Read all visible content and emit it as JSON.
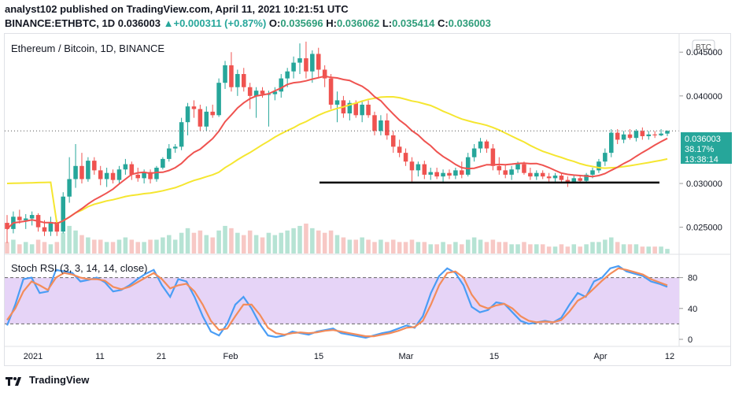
{
  "header": {
    "published_line": "analyst102 published on TradingView.com, April 11, 2021 10:21:51 UTC",
    "symbol": "BINANCE:ETHBTC, 1D",
    "last": "0.036003",
    "change": "▲+0.000311 (+0.87%)",
    "o_label": "O:",
    "o_value": "0.035696",
    "h_label": "H:",
    "h_value": "0.036062",
    "l_label": "L:",
    "l_value": "0.035414",
    "c_label": "C:",
    "c_value": "0.036003"
  },
  "pane_title": "Ethereum / Bitcoin, 1D, BINANCE",
  "currency_badge": "BTC",
  "price_label": {
    "price": "0.036003",
    "pct": "38.17%",
    "timer": "13:38:14"
  },
  "rsi_title": "Stoch RSI (3, 3, 14, 14, close)",
  "footer_brand": "TradingView",
  "colors": {
    "up": "#26a69a",
    "down": "#ef5350",
    "ma_fast": "#ef5350",
    "ma_slow": "#f5e630",
    "stoch_k": "#4a9df5",
    "stoch_d": "#f38c5a",
    "rsi_band": "#e6d4f7"
  },
  "chart_data": [
    {
      "type": "candlestick",
      "title": "Ethereum / Bitcoin, 1D, BINANCE",
      "x_ticks": [
        "2021",
        "11",
        "21",
        "Feb",
        "15",
        "Mar",
        "15",
        "Apr",
        "12"
      ],
      "y_ticks": [
        "0.045000",
        "0.040000",
        "0.030000",
        "0.025000"
      ],
      "ylim": [
        0.022,
        0.047
      ],
      "candles": [
        {
          "o": 0.0255,
          "h": 0.0264,
          "l": 0.0232,
          "c": 0.0248
        },
        {
          "o": 0.0248,
          "h": 0.0268,
          "l": 0.0243,
          "c": 0.0262
        },
        {
          "o": 0.0262,
          "h": 0.027,
          "l": 0.0254,
          "c": 0.0258
        },
        {
          "o": 0.0258,
          "h": 0.0265,
          "l": 0.0248,
          "c": 0.026
        },
        {
          "o": 0.026,
          "h": 0.0268,
          "l": 0.0252,
          "c": 0.0264
        },
        {
          "o": 0.0264,
          "h": 0.0266,
          "l": 0.0245,
          "c": 0.025
        },
        {
          "o": 0.025,
          "h": 0.0258,
          "l": 0.024,
          "c": 0.0245
        },
        {
          "o": 0.0245,
          "h": 0.0262,
          "l": 0.024,
          "c": 0.0256
        },
        {
          "o": 0.0256,
          "h": 0.0258,
          "l": 0.024,
          "c": 0.0245
        },
        {
          "o": 0.0245,
          "h": 0.029,
          "l": 0.0243,
          "c": 0.0285
        },
        {
          "o": 0.0285,
          "h": 0.033,
          "l": 0.0278,
          "c": 0.0305
        },
        {
          "o": 0.0305,
          "h": 0.0345,
          "l": 0.0295,
          "c": 0.032
        },
        {
          "o": 0.032,
          "h": 0.0335,
          "l": 0.03,
          "c": 0.0305
        },
        {
          "o": 0.0305,
          "h": 0.033,
          "l": 0.0302,
          "c": 0.0326
        },
        {
          "o": 0.0326,
          "h": 0.033,
          "l": 0.031,
          "c": 0.0315
        },
        {
          "o": 0.0315,
          "h": 0.032,
          "l": 0.0298,
          "c": 0.0305
        },
        {
          "o": 0.0305,
          "h": 0.0318,
          "l": 0.0296,
          "c": 0.0312
        },
        {
          "o": 0.0312,
          "h": 0.0316,
          "l": 0.03,
          "c": 0.0304
        },
        {
          "o": 0.0304,
          "h": 0.032,
          "l": 0.03,
          "c": 0.0316
        },
        {
          "o": 0.0316,
          "h": 0.0328,
          "l": 0.031,
          "c": 0.0322
        },
        {
          "o": 0.0322,
          "h": 0.0325,
          "l": 0.0304,
          "c": 0.031
        },
        {
          "o": 0.031,
          "h": 0.0318,
          "l": 0.0302,
          "c": 0.0306
        },
        {
          "o": 0.0306,
          "h": 0.0316,
          "l": 0.03,
          "c": 0.0313
        },
        {
          "o": 0.0313,
          "h": 0.0316,
          "l": 0.03,
          "c": 0.0305
        },
        {
          "o": 0.0305,
          "h": 0.032,
          "l": 0.0302,
          "c": 0.0318
        },
        {
          "o": 0.0318,
          "h": 0.033,
          "l": 0.0316,
          "c": 0.0328
        },
        {
          "o": 0.0328,
          "h": 0.0345,
          "l": 0.0325,
          "c": 0.034
        },
        {
          "o": 0.034,
          "h": 0.0345,
          "l": 0.0335,
          "c": 0.0342
        },
        {
          "o": 0.0342,
          "h": 0.0375,
          "l": 0.0338,
          "c": 0.037
        },
        {
          "o": 0.037,
          "h": 0.0392,
          "l": 0.0355,
          "c": 0.0388
        },
        {
          "o": 0.0388,
          "h": 0.0395,
          "l": 0.0375,
          "c": 0.0385
        },
        {
          "o": 0.0385,
          "h": 0.039,
          "l": 0.036,
          "c": 0.0365
        },
        {
          "o": 0.0365,
          "h": 0.0388,
          "l": 0.036,
          "c": 0.0382
        },
        {
          "o": 0.0382,
          "h": 0.039,
          "l": 0.0375,
          "c": 0.0378
        },
        {
          "o": 0.0378,
          "h": 0.042,
          "l": 0.0376,
          "c": 0.0415
        },
        {
          "o": 0.0415,
          "h": 0.044,
          "l": 0.0408,
          "c": 0.0435
        },
        {
          "o": 0.0435,
          "h": 0.045,
          "l": 0.0405,
          "c": 0.041
        },
        {
          "o": 0.041,
          "h": 0.043,
          "l": 0.04,
          "c": 0.0425
        },
        {
          "o": 0.0425,
          "h": 0.0432,
          "l": 0.0405,
          "c": 0.041
        },
        {
          "o": 0.041,
          "h": 0.0415,
          "l": 0.0385,
          "c": 0.04
        },
        {
          "o": 0.04,
          "h": 0.041,
          "l": 0.0375,
          "c": 0.0406
        },
        {
          "o": 0.0406,
          "h": 0.041,
          "l": 0.0398,
          "c": 0.0402
        },
        {
          "o": 0.0402,
          "h": 0.0406,
          "l": 0.0365,
          "c": 0.0402
        },
        {
          "o": 0.0402,
          "h": 0.041,
          "l": 0.0395,
          "c": 0.0405
        },
        {
          "o": 0.0405,
          "h": 0.0425,
          "l": 0.0398,
          "c": 0.042
        },
        {
          "o": 0.042,
          "h": 0.0432,
          "l": 0.041,
          "c": 0.0428
        },
        {
          "o": 0.0428,
          "h": 0.0445,
          "l": 0.042,
          "c": 0.0438
        },
        {
          "o": 0.0438,
          "h": 0.046,
          "l": 0.0425,
          "c": 0.0443
        },
        {
          "o": 0.0443,
          "h": 0.0462,
          "l": 0.042,
          "c": 0.0428
        },
        {
          "o": 0.0428,
          "h": 0.0452,
          "l": 0.0415,
          "c": 0.0448
        },
        {
          "o": 0.0448,
          "h": 0.0455,
          "l": 0.042,
          "c": 0.043
        },
        {
          "o": 0.043,
          "h": 0.0435,
          "l": 0.041,
          "c": 0.042
        },
        {
          "o": 0.042,
          "h": 0.0425,
          "l": 0.0385,
          "c": 0.039
        },
        {
          "o": 0.039,
          "h": 0.0405,
          "l": 0.037,
          "c": 0.0395
        },
        {
          "o": 0.0395,
          "h": 0.04,
          "l": 0.0375,
          "c": 0.038
        },
        {
          "o": 0.038,
          "h": 0.0395,
          "l": 0.0372,
          "c": 0.0392
        },
        {
          "o": 0.0392,
          "h": 0.0395,
          "l": 0.0375,
          "c": 0.0378
        },
        {
          "o": 0.0378,
          "h": 0.0395,
          "l": 0.037,
          "c": 0.039
        },
        {
          "o": 0.039,
          "h": 0.0395,
          "l": 0.0375,
          "c": 0.0378
        },
        {
          "o": 0.0378,
          "h": 0.0382,
          "l": 0.0355,
          "c": 0.036
        },
        {
          "o": 0.036,
          "h": 0.0378,
          "l": 0.0355,
          "c": 0.0372
        },
        {
          "o": 0.0372,
          "h": 0.038,
          "l": 0.035,
          "c": 0.0355
        },
        {
          "o": 0.0355,
          "h": 0.036,
          "l": 0.0335,
          "c": 0.0342
        },
        {
          "o": 0.0342,
          "h": 0.035,
          "l": 0.033,
          "c": 0.0335
        },
        {
          "o": 0.0335,
          "h": 0.034,
          "l": 0.032,
          "c": 0.0325
        },
        {
          "o": 0.0325,
          "h": 0.033,
          "l": 0.0302,
          "c": 0.0315
        },
        {
          "o": 0.0315,
          "h": 0.0325,
          "l": 0.0308,
          "c": 0.0322
        },
        {
          "o": 0.0322,
          "h": 0.0326,
          "l": 0.0305,
          "c": 0.031
        },
        {
          "o": 0.031,
          "h": 0.0318,
          "l": 0.0304,
          "c": 0.0313
        },
        {
          "o": 0.0313,
          "h": 0.0318,
          "l": 0.0305,
          "c": 0.0308
        },
        {
          "o": 0.0308,
          "h": 0.0316,
          "l": 0.03,
          "c": 0.0312
        },
        {
          "o": 0.0312,
          "h": 0.0316,
          "l": 0.0305,
          "c": 0.0309
        },
        {
          "o": 0.0309,
          "h": 0.0318,
          "l": 0.0305,
          "c": 0.0315
        },
        {
          "o": 0.0315,
          "h": 0.0325,
          "l": 0.0306,
          "c": 0.031
        },
        {
          "o": 0.031,
          "h": 0.0335,
          "l": 0.0308,
          "c": 0.033
        },
        {
          "o": 0.033,
          "h": 0.0345,
          "l": 0.0325,
          "c": 0.034
        },
        {
          "o": 0.034,
          "h": 0.0352,
          "l": 0.0335,
          "c": 0.0348
        },
        {
          "o": 0.0348,
          "h": 0.035,
          "l": 0.0335,
          "c": 0.034
        },
        {
          "o": 0.034,
          "h": 0.0345,
          "l": 0.0315,
          "c": 0.032
        },
        {
          "o": 0.032,
          "h": 0.033,
          "l": 0.031,
          "c": 0.0315
        },
        {
          "o": 0.0315,
          "h": 0.0322,
          "l": 0.0306,
          "c": 0.031
        },
        {
          "o": 0.031,
          "h": 0.032,
          "l": 0.0304,
          "c": 0.0316
        },
        {
          "o": 0.0316,
          "h": 0.0325,
          "l": 0.0312,
          "c": 0.0322
        },
        {
          "o": 0.0322,
          "h": 0.0325,
          "l": 0.031,
          "c": 0.0312
        },
        {
          "o": 0.0312,
          "h": 0.0318,
          "l": 0.0304,
          "c": 0.0308
        },
        {
          "o": 0.0308,
          "h": 0.0315,
          "l": 0.0304,
          "c": 0.0312
        },
        {
          "o": 0.0312,
          "h": 0.0315,
          "l": 0.0305,
          "c": 0.0308
        },
        {
          "o": 0.0308,
          "h": 0.0312,
          "l": 0.0302,
          "c": 0.0306
        },
        {
          "o": 0.0306,
          "h": 0.0312,
          "l": 0.0302,
          "c": 0.0309
        },
        {
          "o": 0.0309,
          "h": 0.0312,
          "l": 0.03,
          "c": 0.0304
        },
        {
          "o": 0.0304,
          "h": 0.0308,
          "l": 0.0296,
          "c": 0.0302
        },
        {
          "o": 0.0302,
          "h": 0.031,
          "l": 0.03,
          "c": 0.0306
        },
        {
          "o": 0.0306,
          "h": 0.031,
          "l": 0.03,
          "c": 0.0303
        },
        {
          "o": 0.0303,
          "h": 0.0312,
          "l": 0.03,
          "c": 0.031
        },
        {
          "o": 0.031,
          "h": 0.0318,
          "l": 0.0306,
          "c": 0.0315
        },
        {
          "o": 0.0315,
          "h": 0.0328,
          "l": 0.0312,
          "c": 0.0325
        },
        {
          "o": 0.0325,
          "h": 0.034,
          "l": 0.032,
          "c": 0.0335
        },
        {
          "o": 0.0335,
          "h": 0.0362,
          "l": 0.033,
          "c": 0.0358
        },
        {
          "o": 0.0358,
          "h": 0.0362,
          "l": 0.0345,
          "c": 0.035
        },
        {
          "o": 0.035,
          "h": 0.036,
          "l": 0.0346,
          "c": 0.0356
        },
        {
          "o": 0.0356,
          "h": 0.0362,
          "l": 0.035,
          "c": 0.0352
        },
        {
          "o": 0.0352,
          "h": 0.0362,
          "l": 0.0348,
          "c": 0.036
        },
        {
          "o": 0.036,
          "h": 0.0364,
          "l": 0.035,
          "c": 0.0354
        },
        {
          "o": 0.0354,
          "h": 0.036,
          "l": 0.035,
          "c": 0.0356
        },
        {
          "o": 0.0356,
          "h": 0.036,
          "l": 0.0352,
          "c": 0.0355
        },
        {
          "o": 0.0355,
          "h": 0.0362,
          "l": 0.0354,
          "c": 0.0357
        },
        {
          "o": 0.035696,
          "h": 0.036062,
          "l": 0.035414,
          "c": 0.036003
        }
      ],
      "volume": [
        5,
        6,
        4,
        5,
        4,
        6,
        5,
        4,
        5,
        9,
        12,
        10,
        8,
        7,
        6,
        6,
        5,
        5,
        6,
        7,
        6,
        5,
        5,
        6,
        6,
        7,
        8,
        6,
        9,
        11,
        9,
        10,
        8,
        7,
        10,
        12,
        11,
        9,
        8,
        10,
        8,
        7,
        9,
        8,
        9,
        10,
        11,
        12,
        13,
        11,
        10,
        9,
        10,
        8,
        7,
        6,
        6,
        7,
        6,
        5,
        6,
        5,
        6,
        5,
        5,
        6,
        5,
        5,
        4,
        4,
        5,
        4,
        5,
        4,
        6,
        7,
        6,
        5,
        6,
        5,
        5,
        4,
        4,
        5,
        4,
        4,
        4,
        3,
        3,
        4,
        3,
        4,
        3,
        4,
        5,
        5,
        6,
        7,
        5,
        4,
        4,
        4,
        3,
        3,
        3,
        3,
        2
      ],
      "horizontal_support_level": 0.0301,
      "price_line": 0.036003
    },
    {
      "type": "line",
      "title": "Stoch RSI (3, 3, 14, 14, close)",
      "ylim": [
        0,
        100
      ],
      "y_ticks": [
        "80",
        "40",
        "0"
      ],
      "band": [
        20,
        80
      ],
      "series": [
        {
          "name": "K",
          "values": [
            18,
            45,
            78,
            80,
            60,
            62,
            90,
            88,
            86,
            75,
            77,
            80,
            74,
            62,
            64,
            70,
            78,
            85,
            90,
            70,
            55,
            78,
            75,
            55,
            30,
            10,
            5,
            20,
            45,
            55,
            40,
            20,
            5,
            3,
            5,
            10,
            8,
            6,
            10,
            12,
            14,
            8,
            6,
            4,
            2,
            5,
            8,
            10,
            14,
            18,
            15,
            30,
            60,
            82,
            92,
            86,
            70,
            42,
            35,
            38,
            48,
            46,
            35,
            24,
            20,
            22,
            24,
            22,
            28,
            45,
            60,
            55,
            75,
            80,
            92,
            95,
            88,
            85,
            82,
            75,
            72,
            68
          ]
        },
        {
          "name": "D",
          "values": [
            25,
            40,
            62,
            75,
            70,
            64,
            80,
            86,
            84,
            80,
            78,
            78,
            76,
            68,
            65,
            68,
            74,
            80,
            86,
            78,
            66,
            70,
            72,
            62,
            45,
            24,
            12,
            14,
            30,
            45,
            45,
            32,
            15,
            8,
            6,
            8,
            9,
            8,
            9,
            11,
            12,
            10,
            8,
            6,
            4,
            4,
            6,
            8,
            11,
            15,
            16,
            24,
            45,
            70,
            86,
            88,
            80,
            58,
            44,
            40,
            44,
            46,
            40,
            30,
            24,
            22,
            23,
            22,
            25,
            36,
            50,
            56,
            66,
            76,
            85,
            92,
            90,
            87,
            84,
            78,
            74,
            70
          ]
        }
      ]
    }
  ]
}
